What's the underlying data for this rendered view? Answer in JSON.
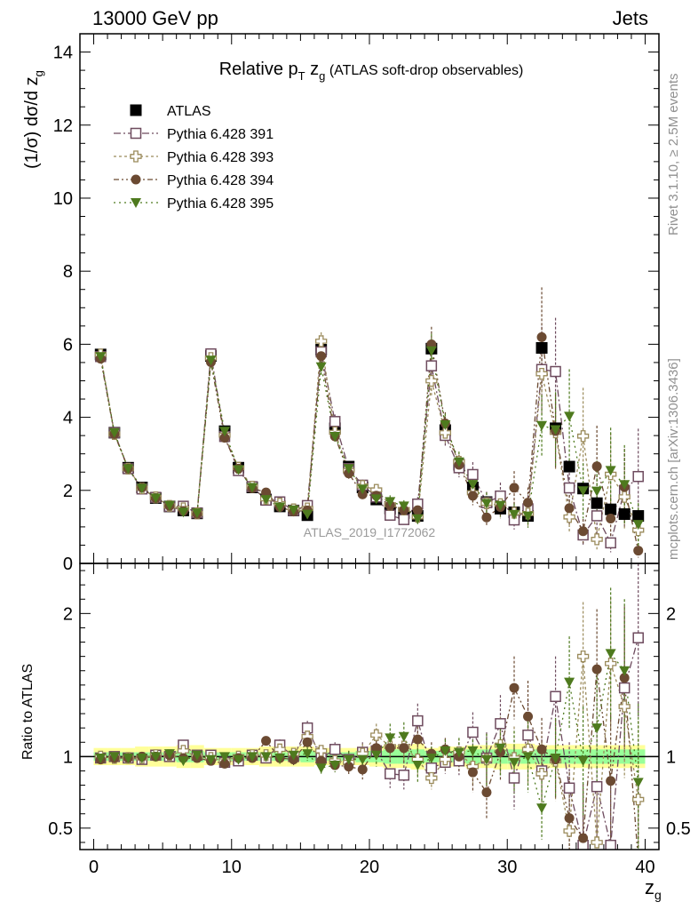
{
  "header": {
    "left": "13000 GeV pp",
    "right": "Jets"
  },
  "side_labels": {
    "rivet": "Rivet 3.1.10, ≥ 2.5M events",
    "mcplots": "mcplots.cern.ch [arXiv:1306.3436]"
  },
  "chart_data": {
    "type": "scatter",
    "title": {
      "main": "Relative p",
      "sub_T": "T",
      "mid": " z",
      "sub_g": "g",
      "rest": " (ATLAS soft-drop observables)"
    },
    "ylabel_top": "(1/σ) dσ/d z",
    "ylabel_top_sub": "g",
    "ylabel_bottom": "Ratio to ATLAS",
    "xlabel": "z",
    "xlabel_sub": "g",
    "analysis_id": "ATLAS_2019_I1772062",
    "xlim": [
      -1,
      41
    ],
    "ylim_top": [
      0,
      14.5
    ],
    "ylim_bottom": [
      0.35,
      2.35
    ],
    "x_ticks": [
      0,
      10,
      20,
      30,
      40
    ],
    "y_ticks_top": [
      0,
      2,
      4,
      6,
      8,
      10,
      12,
      14
    ],
    "y_ticks_bottom": [
      0.5,
      1,
      2
    ],
    "x": [
      0.5,
      1.5,
      2.5,
      3.5,
      4.5,
      5.5,
      6.5,
      7.5,
      8.5,
      9.5,
      10.5,
      11.5,
      12.5,
      13.5,
      14.5,
      15.5,
      16.5,
      17.5,
      18.5,
      19.5,
      20.5,
      21.5,
      22.5,
      23.5,
      24.5,
      25.5,
      26.5,
      27.5,
      28.5,
      29.5,
      30.5,
      31.5,
      32.5,
      33.5,
      34.5,
      35.5,
      36.5,
      37.5,
      38.5,
      39.5
    ],
    "atlas": [
      5.72,
      3.58,
      2.62,
      2.08,
      1.79,
      1.56,
      1.45,
      1.37,
      5.68,
      3.62,
      2.62,
      2.08,
      1.75,
      1.56,
      1.45,
      1.32,
      5.85,
      3.7,
      2.65,
      2.08,
      1.75,
      1.5,
      1.38,
      1.3,
      5.88,
      3.65,
      2.7,
      2.08,
      1.68,
      1.5,
      1.4,
      1.3,
      5.9,
      3.7,
      2.65,
      2.05,
      1.65,
      1.48,
      1.35,
      1.3
    ],
    "legend": [
      {
        "name": "ATLAS"
      },
      {
        "name": "Pythia 6.428 391"
      },
      {
        "name": "Pythia 6.428 393"
      },
      {
        "name": "Pythia 6.428 394"
      },
      {
        "name": "Pythia 6.428 395"
      }
    ],
    "series": [
      {
        "name": "Pythia 6.428 391",
        "color": "#6e4b5e",
        "marker": "open-square",
        "ratio": [
          0.99,
          1.0,
          0.99,
          0.98,
          1.01,
          1.0,
          1.08,
          1.01,
          1.01,
          0.96,
          0.97,
          1.01,
          0.99,
          1.08,
          1.0,
          1.2,
          0.99,
          1.05,
          0.98,
          1.03,
          1.04,
          0.88,
          0.87,
          1.25,
          0.92,
          0.96,
          0.97,
          1.17,
          0.99,
          1.23,
          0.85,
          1.15,
          0.9,
          1.42,
          0.78,
          0.38,
          0.79,
          0.38,
          1.48,
          1.83
        ],
        "err": [
          0.01,
          0.01,
          0.01,
          0.02,
          0.02,
          0.02,
          0.03,
          0.03,
          0.01,
          0.02,
          0.02,
          0.03,
          0.03,
          0.04,
          0.04,
          0.05,
          0.04,
          0.05,
          0.06,
          0.07,
          0.08,
          0.1,
          0.1,
          0.12,
          0.08,
          0.08,
          0.1,
          0.14,
          0.18,
          0.2,
          0.22,
          0.25,
          0.22,
          0.28,
          0.32,
          0.38,
          0.42,
          0.46,
          0.5,
          0.55
        ]
      },
      {
        "name": "Pythia 6.428 393",
        "color": "#9a8a5a",
        "marker": "open-cross",
        "ratio": [
          1.0,
          0.99,
          0.99,
          0.99,
          1.01,
          1.01,
          1.04,
          1.0,
          0.99,
          0.97,
          1.0,
          1.01,
          1.01,
          1.05,
          1.02,
          1.14,
          1.04,
          0.97,
          0.96,
          1.02,
          1.15,
          1.07,
          1.07,
          0.98,
          0.85,
          0.98,
          1.03,
          0.93,
          0.98,
          1.08,
          0.99,
          1.05,
          0.88,
          0.97,
          0.48,
          1.7,
          0.4,
          1.65,
          1.35,
          0.7
        ],
        "err": [
          0.01,
          0.01,
          0.01,
          0.02,
          0.02,
          0.02,
          0.03,
          0.03,
          0.01,
          0.02,
          0.02,
          0.03,
          0.03,
          0.04,
          0.04,
          0.05,
          0.04,
          0.05,
          0.06,
          0.07,
          0.08,
          0.1,
          0.1,
          0.12,
          0.08,
          0.08,
          0.1,
          0.14,
          0.18,
          0.2,
          0.22,
          0.25,
          0.22,
          0.28,
          0.32,
          0.38,
          0.42,
          0.46,
          0.5,
          0.55
        ]
      },
      {
        "name": "Pythia 6.428 394",
        "color": "#6b4a32",
        "marker": "filled-circle",
        "ratio": [
          0.98,
          0.99,
          0.99,
          1.0,
          1.0,
          1.01,
          0.99,
          0.99,
          0.97,
          0.95,
          0.99,
          0.99,
          1.11,
          0.99,
          0.98,
          1.1,
          0.97,
          0.94,
          0.93,
          0.91,
          1.06,
          1.06,
          1.06,
          1.12,
          1.02,
          1.05,
          1.0,
          0.89,
          0.75,
          1.03,
          1.48,
          1.28,
          1.05,
          0.98,
          0.57,
          0.43,
          1.61,
          0.83,
          1.55,
          0.27
        ],
        "err": [
          0.01,
          0.01,
          0.01,
          0.02,
          0.02,
          0.02,
          0.03,
          0.03,
          0.01,
          0.02,
          0.02,
          0.03,
          0.03,
          0.04,
          0.04,
          0.05,
          0.04,
          0.05,
          0.06,
          0.07,
          0.08,
          0.1,
          0.1,
          0.12,
          0.08,
          0.08,
          0.1,
          0.14,
          0.18,
          0.2,
          0.22,
          0.25,
          0.22,
          0.28,
          0.32,
          0.38,
          0.42,
          0.46,
          0.5,
          0.55
        ]
      },
      {
        "name": "Pythia 6.428 395",
        "color": "#4e7a1e",
        "marker": "filled-triangle-down",
        "ratio": [
          0.99,
          1.0,
          0.99,
          0.99,
          1.0,
          1.02,
          0.97,
          1.01,
          0.98,
          1.0,
          0.98,
          1.0,
          1.0,
          0.99,
          1.01,
          1.02,
          0.92,
          0.94,
          0.98,
          0.98,
          1.01,
          1.13,
          1.14,
          0.94,
          0.99,
          1.04,
          1.03,
          1.04,
          0.98,
          1.06,
          0.96,
          1.0,
          0.64,
          0.99,
          1.52,
          0.97,
          1.2,
          1.72,
          1.6,
          0.82
        ],
        "err": [
          0.01,
          0.01,
          0.01,
          0.02,
          0.02,
          0.02,
          0.03,
          0.03,
          0.01,
          0.02,
          0.02,
          0.03,
          0.03,
          0.04,
          0.04,
          0.05,
          0.04,
          0.05,
          0.06,
          0.07,
          0.08,
          0.1,
          0.1,
          0.12,
          0.08,
          0.08,
          0.1,
          0.14,
          0.18,
          0.2,
          0.22,
          0.25,
          0.22,
          0.28,
          0.32,
          0.38,
          0.42,
          0.46,
          0.5,
          0.55
        ]
      }
    ],
    "band_inner": [
      0.03,
      0.03,
      0.03,
      0.03,
      0.03,
      0.03,
      0.04,
      0.04,
      0.03,
      0.03,
      0.03,
      0.03,
      0.03,
      0.03,
      0.03,
      0.04,
      0.03,
      0.03,
      0.03,
      0.04,
      0.04,
      0.05,
      0.05,
      0.05,
      0.04,
      0.04,
      0.04,
      0.05,
      0.05,
      0.05,
      0.05,
      0.05,
      0.05,
      0.05,
      0.05,
      0.05,
      0.05,
      0.05,
      0.05,
      0.05
    ],
    "band_outer": [
      0.06,
      0.06,
      0.06,
      0.07,
      0.07,
      0.07,
      0.08,
      0.08,
      0.06,
      0.06,
      0.06,
      0.06,
      0.07,
      0.07,
      0.07,
      0.07,
      0.06,
      0.06,
      0.06,
      0.06,
      0.07,
      0.08,
      0.08,
      0.09,
      0.06,
      0.07,
      0.07,
      0.08,
      0.08,
      0.09,
      0.09,
      0.09,
      0.08,
      0.08,
      0.08,
      0.08,
      0.08,
      0.08,
      0.08,
      0.08
    ]
  }
}
